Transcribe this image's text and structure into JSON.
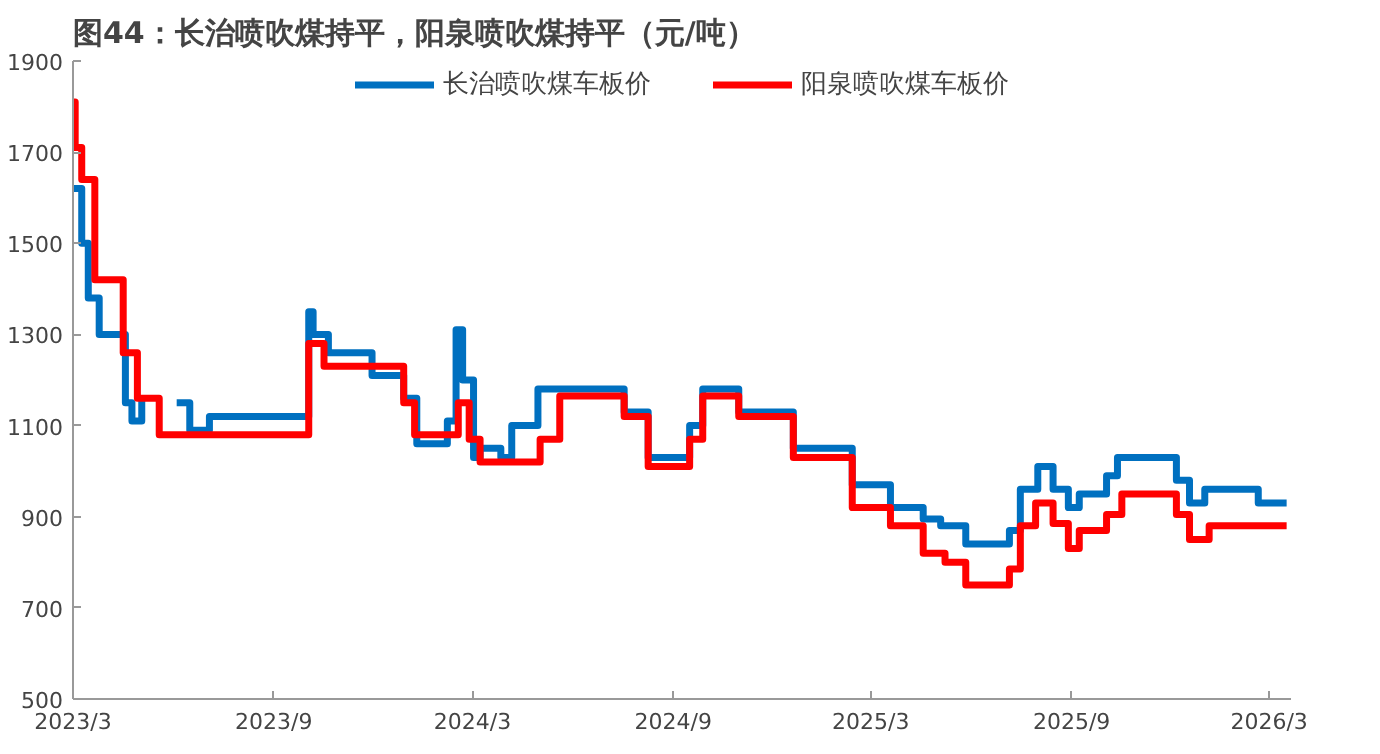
{
  "chart_data": {
    "type": "step",
    "title": "图44：长治喷吹煤持平，阳泉喷吹煤持平（元/吨）",
    "xlim": [
      "2023-03-01",
      "2026-03-21"
    ],
    "xticks": [
      {
        "value": "2023-03-01",
        "label": "2023/3"
      },
      {
        "value": "2023-09-01",
        "label": "2023/9"
      },
      {
        "value": "2024-03-01",
        "label": "2024/3"
      },
      {
        "value": "2024-09-01",
        "label": "2024/9"
      },
      {
        "value": "2025-03-01",
        "label": "2025/3"
      },
      {
        "value": "2025-09-01",
        "label": "2025/9"
      },
      {
        "value": "2026-03-01",
        "label": "2026/3"
      }
    ],
    "ylim": [
      500,
      1900
    ],
    "yticks": [
      500,
      700,
      900,
      1100,
      1300,
      1500,
      1700,
      1900
    ],
    "grid": false,
    "legend": "top",
    "line_style": "solid",
    "marker": "none",
    "series": [
      {
        "name": "长治喷吹煤车板价",
        "color": "#0070c0",
        "x": [
          "2023-03-01",
          "2023-03-09",
          "2023-03-15",
          "2023-03-25",
          "2023-04-18",
          "2023-04-24",
          "2023-05-03",
          "2023-05-19",
          "2023-06-04",
          "2023-06-16",
          "2023-07-04",
          "2023-10-03",
          "2023-10-07",
          "2023-10-21",
          "2023-11-30",
          "2023-12-29",
          "2024-01-10",
          "2024-02-07",
          "2024-02-15",
          "2024-02-21",
          "2024-03-02",
          "2024-03-08",
          "2024-03-27",
          "2024-04-06",
          "2024-04-30",
          "2024-07-18",
          "2024-08-09",
          "2024-09-16",
          "2024-09-28",
          "2024-10-31",
          "2024-12-20",
          "2025-02-12",
          "2025-03-19",
          "2025-04-18",
          "2025-05-04",
          "2025-05-27",
          "2025-07-06",
          "2025-07-16",
          "2025-08-01",
          "2025-08-15",
          "2025-08-29",
          "2025-09-08",
          "2025-10-03",
          "2025-10-13",
          "2025-12-06",
          "2025-12-18",
          "2026-01-01",
          "2026-02-19",
          "2026-03-17"
        ],
        "values": [
          1620,
          1500,
          1380,
          1300,
          1150,
          1110,
          1160,
          null,
          1150,
          1090,
          1120,
          1350,
          1300,
          1260,
          1210,
          1160,
          1060,
          1110,
          1310,
          1200,
          1030,
          1050,
          1030,
          1100,
          1180,
          1130,
          1030,
          1100,
          1180,
          1130,
          1050,
          970,
          920,
          895,
          880,
          840,
          870,
          960,
          1010,
          960,
          920,
          950,
          990,
          1030,
          980,
          930,
          960,
          930,
          930
        ]
      },
      {
        "name": "阳泉喷吹煤车板价",
        "color": "#ff0000",
        "x": [
          "2023-03-01",
          "2023-03-03",
          "2023-03-09",
          "2023-03-21",
          "2023-04-16",
          "2023-04-29",
          "2023-05-19",
          "2023-10-03",
          "2023-10-17",
          "2023-12-29",
          "2024-01-08",
          "2024-02-17",
          "2024-02-27",
          "2024-03-08",
          "2024-05-02",
          "2024-05-20",
          "2024-07-18",
          "2024-08-09",
          "2024-09-16",
          "2024-09-28",
          "2024-10-31",
          "2024-12-20",
          "2025-02-12",
          "2025-03-19",
          "2025-04-18",
          "2025-05-08",
          "2025-05-27",
          "2025-07-06",
          "2025-07-16",
          "2025-07-30",
          "2025-08-15",
          "2025-08-29",
          "2025-09-08",
          "2025-10-03",
          "2025-10-17",
          "2025-12-06",
          "2025-12-18",
          "2026-01-05",
          "2026-03-17"
        ],
        "values": [
          1810,
          1710,
          1640,
          1420,
          1260,
          1160,
          1080,
          1280,
          1230,
          1150,
          1080,
          1150,
          1070,
          1020,
          1070,
          1165,
          1120,
          1010,
          1070,
          1165,
          1120,
          1030,
          920,
          880,
          820,
          800,
          750,
          785,
          880,
          930,
          885,
          830,
          870,
          905,
          950,
          905,
          850,
          880,
          880
        ]
      }
    ]
  }
}
